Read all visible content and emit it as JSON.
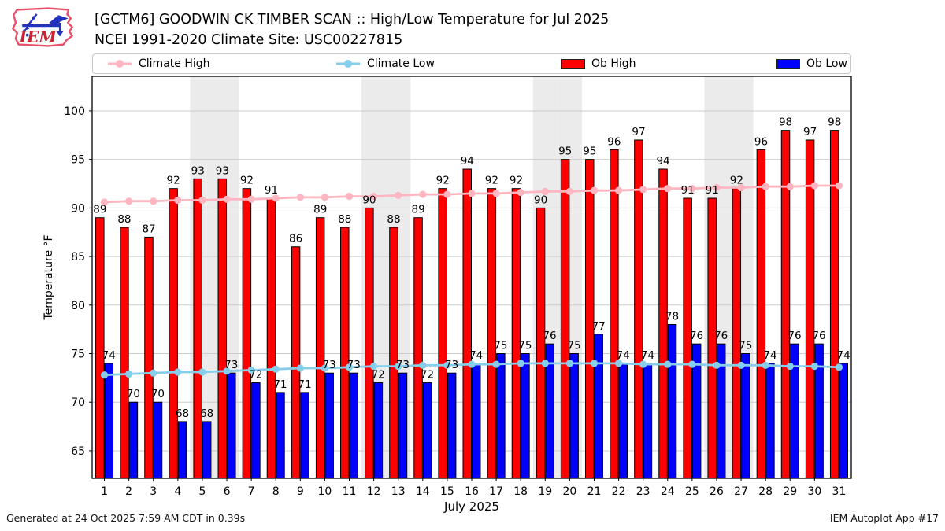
{
  "header": {
    "logo_text": "IEM",
    "title_line1": "[GCTM6] GOODWIN CK TIMBER SCAN :: High/Low Temperature for Jul 2025",
    "title_line2": "NCEI 1991-2020 Climate Site: USC00227815"
  },
  "legend": {
    "items": [
      {
        "label": "Climate High",
        "type": "line",
        "color": "#ffb6c1"
      },
      {
        "label": "Climate Low",
        "type": "line",
        "color": "#87ceeb"
      },
      {
        "label": "Ob High",
        "type": "patch",
        "color": "#ff0000"
      },
      {
        "label": "Ob Low",
        "type": "patch",
        "color": "#0000ff"
      }
    ]
  },
  "chart_data": {
    "type": "bar",
    "title": "[GCTM6] GOODWIN CK TIMBER SCAN :: High/Low Temperature for Jul 2025",
    "subtitle": "NCEI 1991-2020 Climate Site: USC00227815",
    "xlabel": "July 2025",
    "ylabel": "Temperature °F",
    "ylim": [
      62.16,
      103.56
    ],
    "yticks": [
      65,
      70,
      75,
      80,
      85,
      90,
      95,
      100
    ],
    "x": [
      1,
      2,
      3,
      4,
      5,
      6,
      7,
      8,
      9,
      10,
      11,
      12,
      13,
      14,
      15,
      16,
      17,
      18,
      19,
      20,
      21,
      22,
      23,
      24,
      25,
      26,
      27,
      28,
      29,
      30,
      31
    ],
    "series": [
      {
        "name": "Ob High",
        "type": "bar",
        "color": "#ff0000",
        "values": [
          89,
          88,
          87,
          92,
          93,
          93,
          92,
          91,
          86,
          89,
          88,
          90,
          88,
          89,
          92,
          94,
          92,
          92,
          90,
          95,
          95,
          96,
          97,
          94,
          91,
          91,
          92,
          96,
          98,
          97,
          98
        ]
      },
      {
        "name": "Ob Low",
        "type": "bar",
        "color": "#0000ff",
        "values": [
          74,
          70,
          70,
          68,
          68,
          73,
          72,
          71,
          71,
          73,
          73,
          72,
          73,
          72,
          73,
          74,
          75,
          75,
          76,
          75,
          77,
          74,
          74,
          78,
          76,
          76,
          75,
          74,
          76,
          76,
          74
        ]
      },
      {
        "name": "Climate High",
        "type": "line",
        "color": "#ffb6c1",
        "values": [
          90.6,
          90.7,
          90.7,
          90.8,
          90.8,
          90.9,
          90.9,
          91.0,
          91.1,
          91.1,
          91.2,
          91.2,
          91.3,
          91.4,
          91.4,
          91.5,
          91.5,
          91.6,
          91.7,
          91.7,
          91.8,
          91.8,
          91.9,
          92.0,
          92.0,
          92.1,
          92.1,
          92.2,
          92.2,
          92.3,
          92.3
        ]
      },
      {
        "name": "Climate Low",
        "type": "line",
        "color": "#87ceeb",
        "values": [
          72.8,
          72.9,
          73.0,
          73.1,
          73.1,
          73.2,
          73.3,
          73.4,
          73.5,
          73.5,
          73.6,
          73.7,
          73.7,
          73.8,
          73.8,
          73.9,
          73.9,
          74.0,
          74.0,
          74.0,
          74.0,
          74.0,
          73.9,
          73.9,
          73.9,
          73.8,
          73.8,
          73.8,
          73.7,
          73.7,
          73.6
        ]
      }
    ],
    "show_value_labels": true,
    "weekend_shading_days": [
      5,
      6,
      12,
      13,
      19,
      20,
      26,
      27
    ],
    "grid": true,
    "legend_position": "top",
    "colors": {
      "grid": "#cccccc",
      "weekend_band": "#ebebeb",
      "axis": "#000000"
    }
  },
  "footer": {
    "left": "Generated at 24 Oct 2025 7:59 AM CDT in 0.39s",
    "right": "IEM Autoplot App #17"
  }
}
